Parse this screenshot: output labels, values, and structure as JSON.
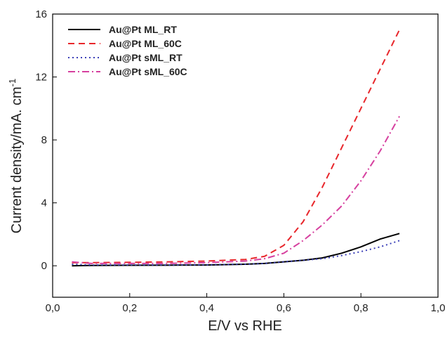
{
  "chart_data": {
    "type": "line",
    "x_label": "E/V vs RHE",
    "y_label": {
      "text": "Current density/mA. cm",
      "superscript": "-1"
    },
    "x": [
      0.05,
      0.1,
      0.2,
      0.3,
      0.4,
      0.5,
      0.55,
      0.6,
      0.65,
      0.7,
      0.75,
      0.8,
      0.85,
      0.9
    ],
    "series": [
      {
        "name": "Au@Pt ML_RT",
        "color": "#000000",
        "dash": "none",
        "values": [
          0,
          0.02,
          0.03,
          0.04,
          0.05,
          0.1,
          0.15,
          0.25,
          0.35,
          0.5,
          0.8,
          1.2,
          1.7,
          2.05
        ]
      },
      {
        "name": "Au@Pt ML_60C",
        "color": "#e8262b",
        "dash": "9,6",
        "values": [
          0.2,
          0.2,
          0.22,
          0.25,
          0.3,
          0.4,
          0.6,
          1.3,
          2.8,
          5.0,
          7.5,
          10.0,
          12.5,
          15.0
        ]
      },
      {
        "name": "Au@Pt sML_RT",
        "color": "#3b3fb8",
        "dash": "2,4",
        "values": [
          0.1,
          0.05,
          0.05,
          0.05,
          0.06,
          0.1,
          0.15,
          0.25,
          0.35,
          0.45,
          0.65,
          0.9,
          1.2,
          1.6
        ]
      },
      {
        "name": "Au@Pt sML_60C",
        "color": "#d6409f",
        "dash": "10,4,2,4",
        "values": [
          0.25,
          0.15,
          0.15,
          0.15,
          0.2,
          0.3,
          0.45,
          0.8,
          1.6,
          2.6,
          3.8,
          5.4,
          7.3,
          9.5
        ]
      }
    ],
    "xlim": [
      0,
      1
    ],
    "ylim": [
      -2,
      16
    ],
    "xticks": [
      {
        "value": 0,
        "label": "0,0"
      },
      {
        "value": 0.2,
        "label": "0,2"
      },
      {
        "value": 0.4,
        "label": "0,4"
      },
      {
        "value": 0.6,
        "label": "0,6"
      },
      {
        "value": 0.8,
        "label": "0,8"
      },
      {
        "value": 1,
        "label": "1,0"
      }
    ],
    "yticks": [
      0,
      4,
      8,
      12,
      16
    ],
    "legend": "upper-left",
    "grid": false
  }
}
